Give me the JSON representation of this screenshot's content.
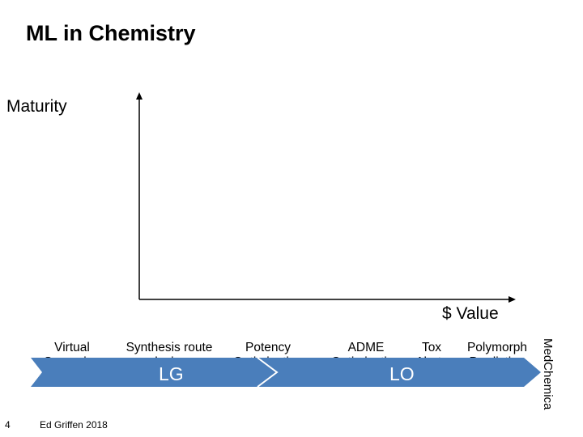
{
  "slide": {
    "title": "ML in Chemistry",
    "y_axis_label": "Maturity",
    "x_axis_label": "$ Value",
    "categories": [
      {
        "line1": "Virtual",
        "line2": "Screening"
      },
      {
        "line1": "Synthesis route",
        "line2": "design"
      },
      {
        "line1": "Potency",
        "line2": "Optimization"
      },
      {
        "line1": "ADME",
        "line2": "Optimization"
      },
      {
        "line1": "Tox",
        "line2": "Alerts"
      },
      {
        "line1": "Polymorph",
        "line2": "Prediction"
      }
    ],
    "phases": {
      "lg": "LG",
      "lo": "LO"
    },
    "banner_color": "#4a7ebb",
    "page_number": "4",
    "footer": "Ed Griffen 2018",
    "brand": "MedChemica"
  }
}
